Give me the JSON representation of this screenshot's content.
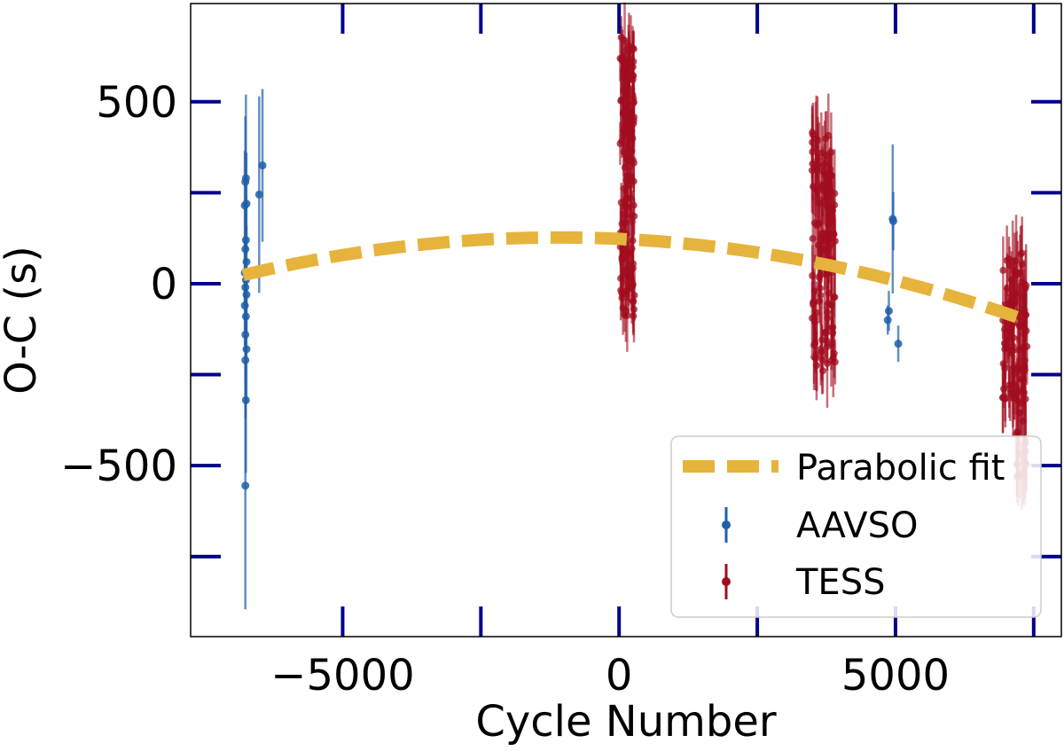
{
  "chart_data": {
    "type": "scatter",
    "title": "",
    "xlabel": "Cycle Number",
    "ylabel": "O-C (s)",
    "xlim": [
      -7750,
      8000
    ],
    "ylim": [
      -970,
      770
    ],
    "x_ticks": [
      -5000,
      0,
      5000
    ],
    "x_tick_labels": [
      "−5000",
      "0",
      "5000"
    ],
    "y_ticks": [
      -500,
      0,
      500
    ],
    "y_tick_labels": [
      "−500",
      "0",
      "500"
    ],
    "x_minor_ticks": [
      -2500,
      2500,
      7500
    ],
    "y_minor_ticks": [
      -750,
      -250,
      250
    ],
    "grid": false,
    "legend_position": "lower-right",
    "legend": [
      "Parabolic fit",
      "AAVSO",
      "TESS"
    ],
    "colors": {
      "aavso": "#1f5fa8",
      "tess": "#a10d1f",
      "fit": "#e6b33c",
      "ticks": "#00008b"
    },
    "fit": {
      "name": "Parabolic fit",
      "vertex_x": -1100,
      "vertex_y": 127,
      "a": -3.18e-06,
      "x_range": [
        -6800,
        7200
      ]
    },
    "series": [
      {
        "name": "AAVSO",
        "points": [
          {
            "x": -6750,
            "y": 290,
            "err": 230
          },
          {
            "x": -6760,
            "y": 280,
            "err": 180
          },
          {
            "x": -6740,
            "y": 220,
            "err": 140
          },
          {
            "x": -6770,
            "y": 215,
            "err": 150
          },
          {
            "x": -6750,
            "y": 120,
            "err": 120
          },
          {
            "x": -6760,
            "y": 95,
            "err": 110
          },
          {
            "x": -6740,
            "y": 60,
            "err": 100
          },
          {
            "x": -6770,
            "y": 30,
            "err": 90
          },
          {
            "x": -6750,
            "y": 10,
            "err": 80
          },
          {
            "x": -6760,
            "y": -10,
            "err": 90
          },
          {
            "x": -6740,
            "y": -30,
            "err": 100
          },
          {
            "x": -6770,
            "y": -60,
            "err": 110
          },
          {
            "x": -6750,
            "y": -90,
            "err": 120
          },
          {
            "x": -6760,
            "y": -140,
            "err": 130
          },
          {
            "x": -6740,
            "y": -180,
            "err": 150
          },
          {
            "x": -6760,
            "y": -210,
            "err": 160
          },
          {
            "x": -6750,
            "y": -320,
            "err": 200
          },
          {
            "x": -6760,
            "y": -555,
            "err": 340
          },
          {
            "x": -6510,
            "y": 245,
            "err": 270
          },
          {
            "x": -6450,
            "y": 325,
            "err": 210
          },
          {
            "x": 4950,
            "y": 178,
            "err": 205
          },
          {
            "x": 4960,
            "y": 172,
            "err": 80
          },
          {
            "x": 4880,
            "y": -75,
            "err": 55
          },
          {
            "x": 4860,
            "y": -100,
            "err": 40
          },
          {
            "x": 5050,
            "y": -165,
            "err": 50
          }
        ]
      },
      {
        "name": "TESS",
        "clusters": [
          {
            "x_center": 150,
            "x_spread": 260,
            "y_min": -90,
            "y_max": 680,
            "n": 140,
            "err": 75
          },
          {
            "x_center": 3700,
            "x_spread": 420,
            "y_min": -240,
            "y_max": 420,
            "n": 130,
            "err": 90
          },
          {
            "x_center": 7050,
            "x_spread": 220,
            "y_min": -330,
            "y_max": 80,
            "n": 55,
            "err": 85
          },
          {
            "x_center": 7280,
            "x_spread": 200,
            "y_min": -560,
            "y_max": 90,
            "n": 60,
            "err": 95
          }
        ]
      }
    ]
  }
}
